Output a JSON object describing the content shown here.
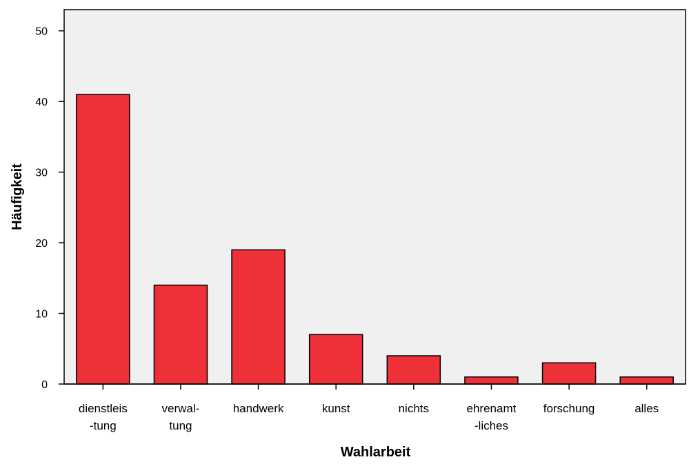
{
  "chart_data": {
    "type": "bar",
    "categories": [
      "dienstleis -tung",
      "verwal- tung",
      "handwerk",
      "kunst",
      "nichts",
      "ehrenamt -liches",
      "forschung",
      "alles"
    ],
    "category_lines": [
      [
        "dienstleis",
        "-tung"
      ],
      [
        "verwal-",
        "tung"
      ],
      [
        "handwerk"
      ],
      [
        "kunst"
      ],
      [
        "nichts"
      ],
      [
        "ehrenamt",
        "-liches"
      ],
      [
        "forschung"
      ],
      [
        "alles"
      ]
    ],
    "values": [
      41,
      14,
      19,
      7,
      4,
      1,
      3,
      1
    ],
    "xlabel": "Wahlarbeit",
    "ylabel": "Häufigkeit",
    "ylim": [
      0,
      53
    ],
    "yticks": [
      0,
      10,
      20,
      30,
      40,
      50
    ],
    "grid": false,
    "colors": {
      "bar": "#ee3039",
      "plot_background": "#f0f0f0",
      "axis": "#000000"
    }
  }
}
